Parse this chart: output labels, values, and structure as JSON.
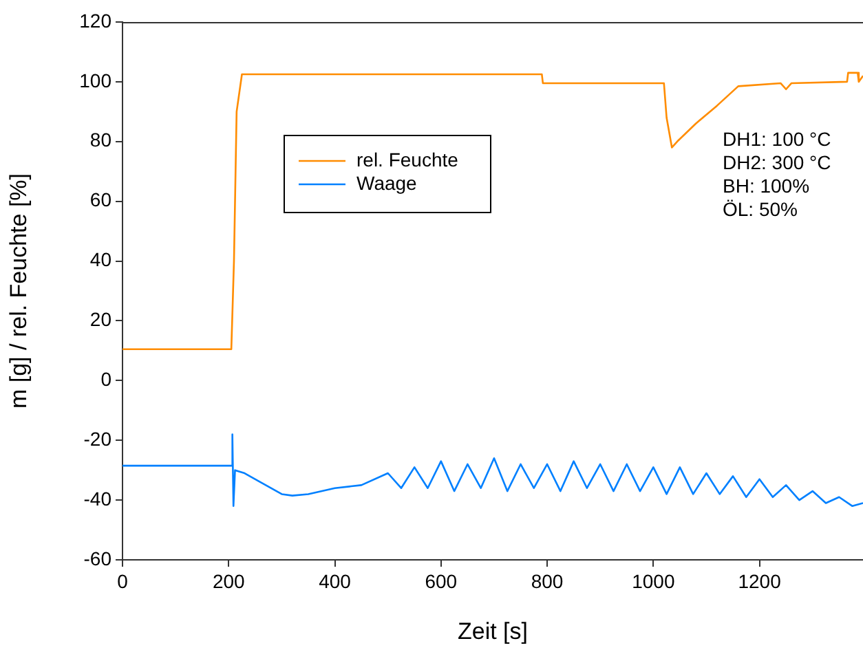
{
  "chart_data": {
    "type": "line",
    "xlabel": "Zeit [s]",
    "ylabel": "m [g] / rel. Feuchte [%]",
    "xlim": [
      0,
      1395
    ],
    "xticks": [
      0,
      200,
      400,
      600,
      800,
      1000,
      1200
    ],
    "ylim": [
      -60,
      120
    ],
    "yticks": [
      -60,
      -40,
      -20,
      0,
      20,
      40,
      60,
      80,
      100,
      120
    ],
    "grid": false,
    "legend": "top left",
    "marker": "none",
    "line_style": "solid",
    "annotations": [
      "DH1: 100 °C",
      "DH2: 300 °C",
      "BH: 100%",
      "ÖL: 50%"
    ],
    "series": [
      {
        "name": "rel. Feuchte",
        "color": "#ff8c00",
        "x": [
          0,
          100,
          205,
          210,
          215,
          225,
          400,
          600,
          790,
          792,
          1020,
          1025,
          1035,
          1045,
          1080,
          1120,
          1160,
          1240,
          1250,
          1260,
          1365,
          1367,
          1385,
          1387,
          1395
        ],
        "values": [
          10.5,
          10.5,
          10.5,
          40,
          90,
          102.5,
          102.5,
          102.5,
          102.5,
          99.5,
          99.5,
          88,
          78,
          80,
          86,
          92,
          98.5,
          99.5,
          97.5,
          99.5,
          100,
          103,
          103,
          100,
          102
        ]
      },
      {
        "name": "Waage",
        "color": "#0080ff",
        "x": [
          0,
          100,
          205,
          207,
          209,
          212,
          230,
          260,
          300,
          320,
          350,
          400,
          450,
          500,
          525,
          550,
          575,
          600,
          625,
          650,
          675,
          700,
          725,
          750,
          775,
          800,
          825,
          850,
          875,
          900,
          925,
          950,
          975,
          1000,
          1025,
          1050,
          1075,
          1100,
          1125,
          1150,
          1175,
          1200,
          1225,
          1250,
          1275,
          1300,
          1325,
          1350,
          1375,
          1395
        ],
        "values": [
          -28.5,
          -28.5,
          -28.5,
          -18,
          -42,
          -30,
          -31,
          -34,
          -38,
          -38.5,
          -38,
          -36,
          -35,
          -31,
          -36,
          -29,
          -36,
          -27,
          -37,
          -28,
          -36,
          -26,
          -37,
          -28,
          -36,
          -28,
          -37,
          -27,
          -36,
          -28,
          -37,
          -28,
          -37,
          -29,
          -38,
          -29,
          -38,
          -31,
          -38,
          -32,
          -39,
          -33,
          -39,
          -35,
          -40,
          -37,
          -41,
          -39,
          -42,
          -41
        ]
      }
    ]
  }
}
